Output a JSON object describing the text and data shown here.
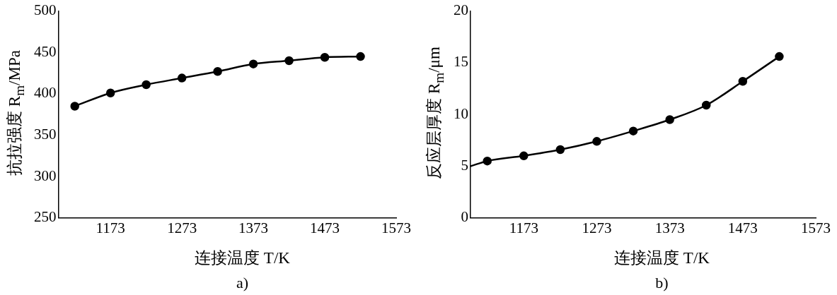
{
  "chart_data": [
    {
      "type": "line",
      "xlabel": "连接温度 T/K",
      "ylabel": "抗拉强度 R$_{m}$/MPa",
      "annotations": [
        "a)"
      ],
      "xlim": [
        1100,
        1573
      ],
      "xticks": [
        1173,
        1273,
        1373,
        1473,
        1573
      ],
      "ylim": [
        250,
        500
      ],
      "yticks": [
        250,
        300,
        350,
        400,
        450,
        500
      ],
      "grid": false,
      "legend": false,
      "marker": "circle",
      "series": [
        {
          "color": "#000000",
          "x": [
            1123,
            1173,
            1223,
            1273,
            1323,
            1373,
            1423,
            1473,
            1523
          ],
          "values": [
            385,
            401,
            411,
            419,
            427,
            436,
            440,
            444,
            445
          ]
        }
      ]
    },
    {
      "type": "line",
      "xlabel": "连接温度 T/K",
      "ylabel": "反应层厚度 R$_{m}$/μm",
      "annotations": [
        "b)"
      ],
      "xlim": [
        1100,
        1573
      ],
      "xticks": [
        1173,
        1273,
        1373,
        1473,
        1573
      ],
      "ylim": [
        0,
        20
      ],
      "yticks": [
        0,
        5,
        10,
        15,
        20
      ],
      "grid": false,
      "legend": false,
      "series": [
        {
          "marker": "none",
          "color": "#000000",
          "x": [
            1100,
            1123,
            1173,
            1223,
            1273,
            1323,
            1373,
            1423,
            1473,
            1523
          ],
          "values": [
            5.0,
            5.5,
            6.0,
            6.6,
            7.4,
            8.4,
            9.5,
            10.9,
            13.2,
            15.6
          ]
        },
        {
          "type": "scatter",
          "marker": "circle",
          "color": "#000000",
          "x": [
            1123,
            1173,
            1223,
            1273,
            1323,
            1373,
            1423,
            1473,
            1523
          ],
          "values": [
            5.5,
            6.0,
            6.6,
            7.4,
            8.4,
            9.5,
            10.9,
            13.2,
            15.6
          ]
        }
      ]
    }
  ]
}
